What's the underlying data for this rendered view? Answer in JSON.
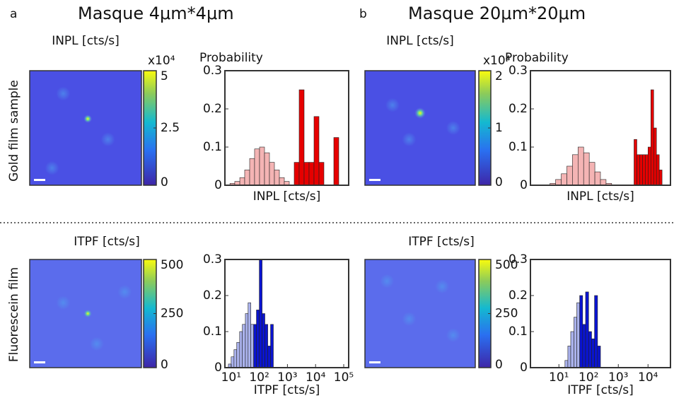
{
  "panels": [
    {
      "label": "a",
      "title": "Masque 4μm*4μm"
    },
    {
      "label": "b",
      "title": "Masque 20μm*20μm"
    }
  ],
  "row_labels": [
    "Gold film sample",
    "Fluorescein film"
  ],
  "chart_data": [
    {
      "type": "histogram",
      "image_title": "INPL [cts/s]",
      "ylabel": "Probability",
      "xlabel": "INPL [cts/s]",
      "colorbar": {
        "ylim": [
          0,
          5
        ],
        "yticks": [
          0,
          2.5,
          5
        ],
        "multiplier": "x10⁴"
      },
      "xscale": "log",
      "xlim": [
        10,
        1000000
      ],
      "ylim": [
        0,
        0.3
      ],
      "yticks": [
        0,
        0.1,
        0.2,
        0.3
      ],
      "series": [
        {
          "color": "#f4b4b4",
          "bins": [
            16,
            25,
            40,
            63,
            100,
            158,
            251,
            398,
            631,
            1000,
            1585,
            2512,
            3981
          ],
          "values": [
            0.005,
            0.01,
            0.02,
            0.04,
            0.07,
            0.095,
            0.1,
            0.085,
            0.06,
            0.04,
            0.02,
            0.01
          ]
        },
        {
          "color": "#e60000",
          "bins": [
            6310,
            10000,
            15850,
            25120,
            39810,
            63100,
            100000,
            158500,
            251200,
            398100
          ],
          "values": [
            0.06,
            0.25,
            0.06,
            0.06,
            0.18,
            0.06,
            0,
            0,
            0.125
          ]
        }
      ]
    },
    {
      "type": "histogram",
      "image_title": "INPL [cts/s]",
      "ylabel": "Probability",
      "xlabel": "INPL [cts/s]",
      "colorbar": {
        "ylim": [
          0,
          2
        ],
        "yticks": [
          0,
          1,
          2
        ],
        "multiplier": "x10⁴"
      },
      "xscale": "log",
      "xlim": [
        10,
        1000000
      ],
      "ylim": [
        0,
        0.3
      ],
      "yticks": [
        0,
        0.1,
        0.2,
        0.3
      ],
      "series": [
        {
          "color": "#f4b4b4",
          "bins": [
            50,
            79,
            126,
            200,
            316,
            501,
            794,
            1259,
            1995,
            3162,
            5012,
            7943
          ],
          "values": [
            0.005,
            0.015,
            0.03,
            0.05,
            0.08,
            0.1,
            0.085,
            0.06,
            0.035,
            0.015,
            0.005
          ]
        },
        {
          "color": "#e60000",
          "bins": [
            50000,
            63100,
            79430,
            100000,
            125900,
            158500,
            199500,
            251200,
            316200,
            398100,
            501200
          ],
          "values": [
            0.12,
            0.08,
            0.08,
            0.08,
            0.08,
            0.1,
            0.25,
            0.15,
            0.08,
            0.04
          ]
        }
      ]
    },
    {
      "type": "histogram",
      "image_title": "ITPF [cts/s]",
      "xlabel": "ITPF [cts/s]",
      "colorbar": {
        "ylim": [
          0,
          500
        ],
        "yticks": [
          0,
          250,
          500
        ]
      },
      "xscale": "log",
      "xlim": [
        6,
        150000
      ],
      "ylim": [
        0,
        0.3
      ],
      "yticks": [
        0,
        0.1,
        0.2,
        0.3
      ],
      "xticks": [
        {
          "value": 10,
          "label": "10¹"
        },
        {
          "value": 100,
          "label": "10²"
        },
        {
          "value": 1000,
          "label": "10³"
        },
        {
          "value": 10000,
          "label": "10⁴"
        },
        {
          "value": 100000,
          "label": "10⁵"
        }
      ],
      "series": [
        {
          "color": "#aab2ec",
          "bins": [
            8,
            10,
            12.6,
            15.8,
            20,
            25,
            32,
            40,
            50,
            63
          ],
          "values": [
            0.01,
            0.03,
            0.05,
            0.07,
            0.1,
            0.12,
            0.15,
            0.18,
            0.12
          ]
        },
        {
          "color": "#0a14d0",
          "bins": [
            63,
            79,
            100,
            126,
            158,
            200,
            251,
            316
          ],
          "values": [
            0.12,
            0.16,
            0.3,
            0.15,
            0.12,
            0.06,
            0.12
          ]
        }
      ]
    },
    {
      "type": "histogram",
      "image_title": "ITPF [cts/s]",
      "xlabel": "ITPF [cts/s]",
      "colorbar": {
        "ylim": [
          0,
          500
        ],
        "yticks": [
          0,
          250,
          500
        ]
      },
      "xscale": "log",
      "xlim": [
        1.1,
        57000
      ],
      "ylim": [
        0,
        0.3
      ],
      "yticks": [
        0,
        0.1,
        0.2,
        0.3
      ],
      "xticks": [
        {
          "value": 10,
          "label": "10¹"
        },
        {
          "value": 100,
          "label": "10²"
        },
        {
          "value": 1000,
          "label": "10³"
        },
        {
          "value": 10000,
          "label": "10⁴"
        }
      ],
      "series": [
        {
          "color": "#aab2ec",
          "bins": [
            16,
            20,
            25,
            32,
            40,
            50
          ],
          "values": [
            0.02,
            0.06,
            0.1,
            0.14,
            0.18
          ]
        },
        {
          "color": "#0a14d0",
          "bins": [
            50,
            63,
            79,
            100,
            126,
            158,
            200,
            251
          ],
          "values": [
            0.2,
            0.12,
            0.21,
            0.1,
            0.08,
            0.2,
            0.06
          ]
        }
      ]
    }
  ]
}
